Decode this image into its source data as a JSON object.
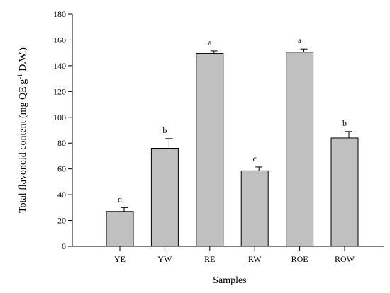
{
  "chart_data": {
    "type": "bar",
    "categories": [
      "YE",
      "YW",
      "RE",
      "RW",
      "ROE",
      "ROW"
    ],
    "values": [
      27,
      76,
      149.5,
      58.5,
      150.5,
      84
    ],
    "errors": [
      3,
      7.5,
      2,
      3,
      2.5,
      5
    ],
    "significance": [
      "d",
      "b",
      "a",
      "c",
      "a",
      "b"
    ],
    "title": "",
    "xlabel": "Samples",
    "ylabel_main": "Total flavonoid content (mg QE g",
    "ylabel_sup": "-1",
    "ylabel_end": " D.W.)",
    "ylim": [
      0,
      180
    ],
    "yticks": [
      0,
      20,
      40,
      60,
      80,
      100,
      120,
      140,
      160,
      180
    ],
    "grid": false,
    "legend": "none"
  }
}
